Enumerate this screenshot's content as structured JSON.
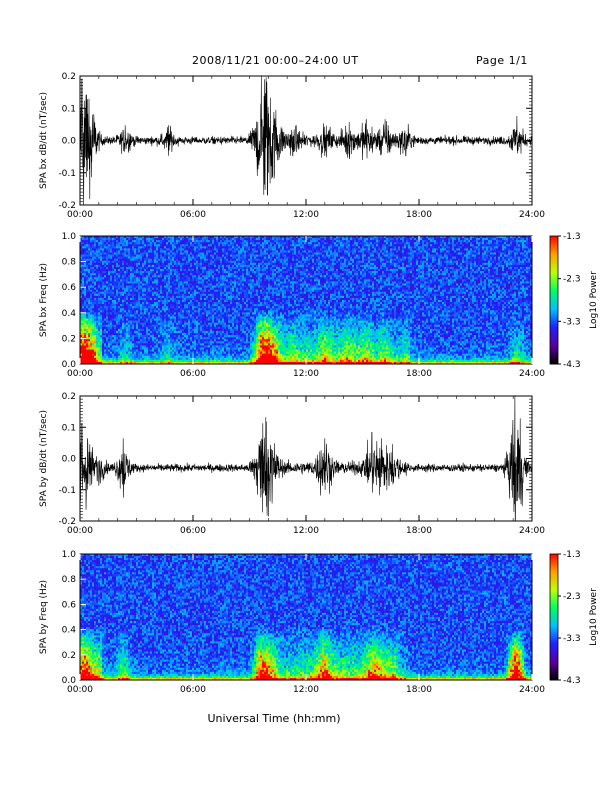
{
  "header": {
    "title": "2008/11/21   00:00–24:00 UT",
    "page": "Page 1/1"
  },
  "x_axis": {
    "label": "Universal Time (hh:mm)",
    "ticks": [
      "00:00",
      "06:00",
      "12:00",
      "18:00",
      "24:00"
    ],
    "range_hours": [
      0,
      24
    ]
  },
  "colorbar": {
    "label": "Log10 Power",
    "ticks": [
      "-1.3",
      "-2.3",
      "-3.3",
      "-4.3"
    ],
    "range": [
      -4.3,
      -1.3
    ],
    "colors": [
      "#000000",
      "#5a00a0",
      "#2020ff",
      "#00c0ff",
      "#00ff60",
      "#c0ff00",
      "#ffa000",
      "#ff0000"
    ]
  },
  "chart_data": [
    {
      "type": "line",
      "ylabel": "SPA bx dB/dt (nT/sec)",
      "ylim": [
        -0.2,
        0.2
      ],
      "yticks": [
        "0.2",
        "0.1",
        "0.0",
        "-0.1",
        "-0.2"
      ],
      "events": [
        {
          "t": 0.1,
          "amp": 0.2
        },
        {
          "t": 0.35,
          "amp": 0.15
        },
        {
          "t": 0.6,
          "amp": 0.12
        },
        {
          "t": 2.4,
          "amp": 0.05
        },
        {
          "t": 4.7,
          "amp": 0.05
        },
        {
          "t": 9.6,
          "amp": 0.12
        },
        {
          "t": 9.8,
          "amp": 0.2
        },
        {
          "t": 10.1,
          "amp": 0.14
        },
        {
          "t": 10.4,
          "amp": 0.1
        },
        {
          "t": 11.3,
          "amp": 0.05
        },
        {
          "t": 13.0,
          "amp": 0.05
        },
        {
          "t": 14.3,
          "amp": 0.06
        },
        {
          "t": 15.2,
          "amp": 0.07
        },
        {
          "t": 16.2,
          "amp": 0.07
        },
        {
          "t": 17.3,
          "amp": 0.05
        },
        {
          "t": 23.2,
          "amp": 0.08
        }
      ]
    },
    {
      "type": "heatmap",
      "ylabel": "SPA bx Freq (Hz)",
      "ylim": [
        0.0,
        1.0
      ],
      "yticks": [
        "1.0",
        "0.8",
        "0.6",
        "0.4",
        "0.2",
        "0.0"
      ],
      "zlim": [
        -4.3,
        -1.3
      ]
    },
    {
      "type": "line",
      "ylabel": "SPA by dB/dt (nT/sec)",
      "ylim": [
        -0.2,
        0.2
      ],
      "yticks": [
        "0.2",
        "0.1",
        "0.0",
        "-0.1",
        "-0.2"
      ],
      "baseline": -0.03,
      "events": [
        {
          "t": 0.1,
          "amp": 0.15
        },
        {
          "t": 0.4,
          "amp": 0.1
        },
        {
          "t": 1.0,
          "amp": 0.06
        },
        {
          "t": 2.3,
          "amp": 0.1
        },
        {
          "t": 9.6,
          "amp": 0.1
        },
        {
          "t": 9.7,
          "amp": 0.15
        },
        {
          "t": 10.2,
          "amp": 0.12
        },
        {
          "t": 12.9,
          "amp": 0.05
        },
        {
          "t": 13.0,
          "amp": 0.1
        },
        {
          "t": 15.5,
          "amp": 0.12
        },
        {
          "t": 16.0,
          "amp": 0.1
        },
        {
          "t": 16.6,
          "amp": 0.08
        },
        {
          "t": 23.1,
          "amp": 0.25
        },
        {
          "t": 23.3,
          "amp": 0.1
        }
      ]
    },
    {
      "type": "heatmap",
      "ylabel": "SPA by Freq (Hz)",
      "ylim": [
        0.0,
        1.0
      ],
      "yticks": [
        "1.0",
        "0.8",
        "0.6",
        "0.4",
        "0.2",
        "0.0"
      ],
      "zlim": [
        -4.3,
        -1.3
      ]
    }
  ]
}
